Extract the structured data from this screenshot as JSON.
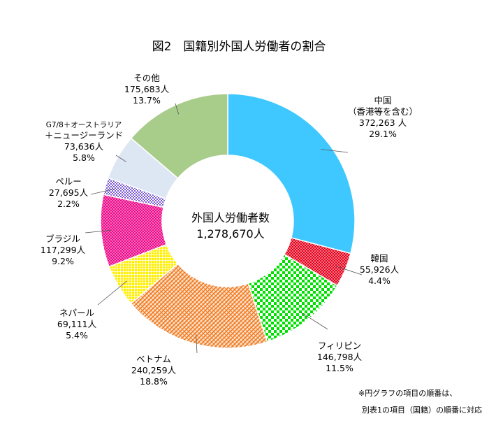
{
  "chart_data": {
    "type": "pie",
    "title": "図2　国籍別外国人労働者の割合",
    "center_label": "外国人労働者数",
    "center_value": "1,278,670人",
    "slices": [
      {
        "name": "中国",
        "name2": "（香港等を含む）",
        "value_label": "372,263 人",
        "value": 372263,
        "percent_label": "29.1%",
        "percent": 29.1,
        "color": "#3fc8ff",
        "pattern": "solid"
      },
      {
        "name": "韓国",
        "value_label": "55,926人",
        "value": 55926,
        "percent_label": "4.4%",
        "percent": 4.4,
        "color": "#e8001c",
        "pattern": "dots"
      },
      {
        "name": "フィリピン",
        "value_label": "146,798人",
        "value": 146798,
        "percent_label": "11.5%",
        "percent": 11.5,
        "color": "#00e000",
        "pattern": "checker"
      },
      {
        "name": "ベトナム",
        "value_label": "240,259人",
        "value": 240259,
        "percent_label": "18.8%",
        "percent": 18.8,
        "color": "#f07a20",
        "pattern": "weave"
      },
      {
        "name": "ネパール",
        "value_label": "69,111人",
        "value": 69111,
        "percent_label": "5.4%",
        "percent": 5.4,
        "color": "#ffee00",
        "pattern": "grid"
      },
      {
        "name": "ブラジル",
        "value_label": "117,299人",
        "value": 117299,
        "percent_label": "9.2%",
        "percent": 9.2,
        "color": "#ee0a8a",
        "pattern": "dots"
      },
      {
        "name": "ペルー",
        "value_label": "27,695人",
        "value": 27695,
        "percent_label": "2.2%",
        "percent": 2.2,
        "color": "#7b5cd6",
        "pattern": "checker"
      },
      {
        "name": "G7/8＋オーストラリア",
        "name2": "＋ニュージーランド",
        "value_label": "73,636人",
        "value": 73636,
        "percent_label": "5.8%",
        "percent": 5.8,
        "color": "#dde6f3",
        "pattern": "solid"
      },
      {
        "name": "その他",
        "value_label": "175,683人",
        "value": 175683,
        "percent_label": "13.7%",
        "percent": 13.7,
        "color": "#a8cc8a",
        "pattern": "solid"
      }
    ]
  },
  "notes": {
    "line1": "※円グラフの項目の順番は、",
    "line2": "別表1の項目（国籍）の順番に対応"
  }
}
